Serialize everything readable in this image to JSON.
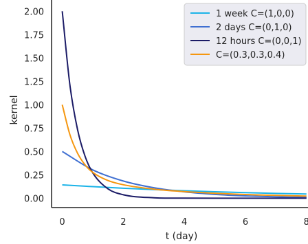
{
  "chart_data": {
    "type": "line",
    "xlabel": "t (day)",
    "ylabel": "kernel",
    "xlim": [
      -0.35,
      8.05
    ],
    "ylim": [
      -0.1,
      2.12
    ],
    "x_ticks": [
      0,
      2,
      4,
      6,
      8
    ],
    "x_tick_labels": [
      "0",
      "2",
      "4",
      "6",
      "8"
    ],
    "y_ticks": [
      0.0,
      0.25,
      0.5,
      0.75,
      1.0,
      1.25,
      1.5,
      1.75,
      2.0
    ],
    "y_tick_labels": [
      "0.00",
      "0.25",
      "0.50",
      "0.75",
      "1.00",
      "1.25",
      "1.50",
      "1.75",
      "2.00"
    ],
    "grid": false,
    "legend_position": "top-right",
    "series": [
      {
        "name": "1 week C=(1,0,0)",
        "color": "#1ab3e8",
        "x": [
          0,
          1,
          2,
          3,
          4,
          5,
          6,
          7,
          8
        ],
        "y": [
          0.143,
          0.124,
          0.107,
          0.092,
          0.08,
          0.069,
          0.06,
          0.052,
          0.045
        ]
      },
      {
        "name": "2 days C=(0,1,0)",
        "color": "#3f6fd1",
        "x": [
          0,
          1,
          2,
          3,
          4,
          5,
          6,
          7,
          8
        ],
        "y": [
          0.5,
          0.303,
          0.184,
          0.112,
          0.068,
          0.041,
          0.025,
          0.015,
          0.009
        ]
      },
      {
        "name": "12 hours C=(0,0,1)",
        "color": "#1b1b66",
        "x": [
          0,
          0.25,
          0.5,
          0.75,
          1,
          1.5,
          2,
          3,
          4,
          6,
          8
        ],
        "y": [
          2.0,
          1.213,
          0.736,
          0.446,
          0.271,
          0.1,
          0.037,
          0.005,
          0.001,
          0.0,
          0.0
        ]
      },
      {
        "name": "C=(0.3,0.3,0.4)",
        "color": "#f5960f",
        "x": [
          0,
          0.25,
          0.5,
          0.75,
          1,
          1.5,
          2,
          3,
          4,
          6,
          8
        ],
        "y": [
          1.0,
          0.681,
          0.482,
          0.356,
          0.276,
          0.189,
          0.144,
          0.097,
          0.071,
          0.04,
          0.023
        ]
      }
    ]
  }
}
